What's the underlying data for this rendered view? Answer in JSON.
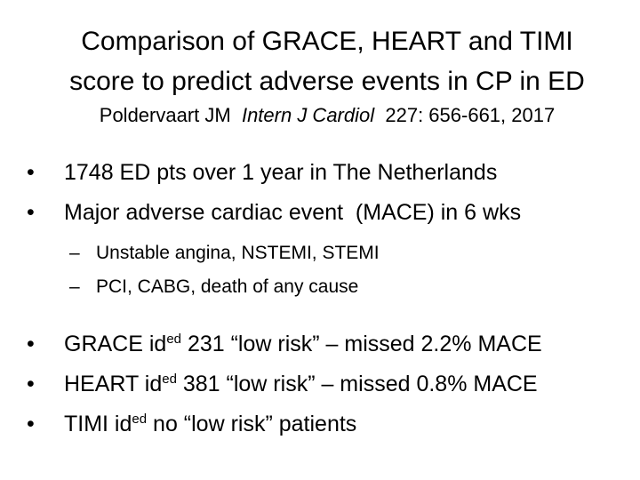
{
  "title": [
    "Comparison of GRACE, HEART and TIMI",
    "score to predict adverse events in CP in ED"
  ],
  "citation": {
    "author": "Poldervaart JM",
    "journal": "Intern J Cardiol",
    "details": "227: 656-661, 2017"
  },
  "bullets": [
    "1748 ED pts over 1 year in The Netherlands",
    "Major adverse cardiac event  (MACE) in 6 wks"
  ],
  "sub_bullets": [
    "Unstable angina, NSTEMI, STEMI",
    "PCI, CABG, death of any cause"
  ],
  "findings": [
    {
      "before": "GRACE id",
      "sup": "ed",
      "after": " 231 “low risk” – missed 2.2% MACE"
    },
    {
      "before": "HEART id",
      "sup": "ed",
      "after": " 381 “low risk” – missed 0.8% MACE"
    },
    {
      "before": "TIMI id",
      "sup": "ed",
      "after": " no “low risk” patients"
    }
  ]
}
